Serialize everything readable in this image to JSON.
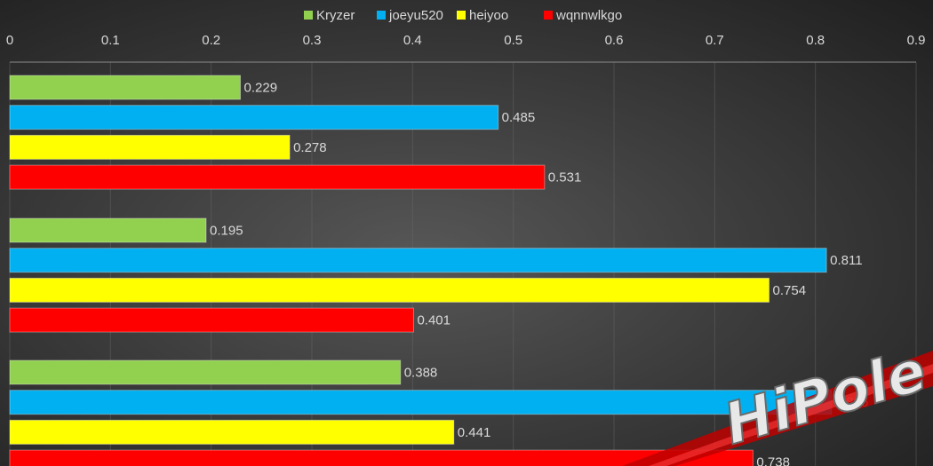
{
  "chart_data": {
    "type": "bar",
    "orientation": "horizontal",
    "xlim": [
      0,
      0.9
    ],
    "xticks": [
      "0",
      "0.1",
      "0.2",
      "0.3",
      "0.4",
      "0.5",
      "0.6",
      "0.7",
      "0.8",
      "0.9"
    ],
    "axis_position": "top",
    "grid": true,
    "legend_position": "top",
    "groups": 3,
    "series": [
      {
        "name": "Kryzer",
        "color": "#92d050",
        "values": [
          0.229,
          0.195,
          0.388
        ],
        "labels": [
          "0.229",
          "0.195",
          "0.388"
        ]
      },
      {
        "name": "joeyu520",
        "color": "#00b0f0",
        "values": [
          0.485,
          0.811,
          0.816
        ],
        "labels": [
          "0.485",
          "0.811",
          "0.816"
        ]
      },
      {
        "name": "heiyoo",
        "color": "#ffff00",
        "values": [
          0.278,
          0.754,
          0.441
        ],
        "labels": [
          "0.278",
          "0.754",
          "0.441"
        ]
      },
      {
        "name": "wqnnwlkgo",
        "color": "#ff0000",
        "values": [
          0.531,
          0.401,
          0.738
        ],
        "labels": [
          "0.531",
          "0.401",
          "0.738"
        ]
      }
    ]
  },
  "watermark": {
    "text": "HiPole"
  }
}
